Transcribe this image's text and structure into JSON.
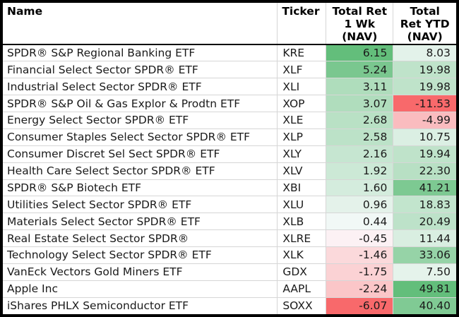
{
  "chart_data": {
    "type": "table",
    "columns": [
      {
        "key": "name",
        "label": "Name"
      },
      {
        "key": "ticker",
        "label": "Ticker"
      },
      {
        "key": "wk",
        "label": "Total Ret\n1 Wk\n(NAV)"
      },
      {
        "key": "ytd",
        "label": "Total\nRet YTD\n(NAV)"
      }
    ],
    "rows": [
      {
        "name": "SPDR® S&P Regional Banking ETF",
        "ticker": "KRE",
        "wk": 6.15,
        "ytd": 8.03
      },
      {
        "name": "Financial Select Sector SPDR® ETF",
        "ticker": "XLF",
        "wk": 5.24,
        "ytd": 19.98
      },
      {
        "name": "Industrial Select Sector SPDR® ETF",
        "ticker": "XLI",
        "wk": 3.11,
        "ytd": 19.98
      },
      {
        "name": "SPDR® S&P Oil & Gas Explor & Prodtn ETF",
        "ticker": "XOP",
        "wk": 3.07,
        "ytd": -11.53
      },
      {
        "name": "Energy Select Sector SPDR® ETF",
        "ticker": "XLE",
        "wk": 2.68,
        "ytd": -4.99
      },
      {
        "name": "Consumer Staples Select Sector SPDR® ETF",
        "ticker": "XLP",
        "wk": 2.58,
        "ytd": 10.75
      },
      {
        "name": "Consumer Discret Sel Sect SPDR® ETF",
        "ticker": "XLY",
        "wk": 2.16,
        "ytd": 19.94
      },
      {
        "name": "Health Care Select Sector SPDR® ETF",
        "ticker": "XLV",
        "wk": 1.92,
        "ytd": 22.3
      },
      {
        "name": "SPDR® S&P Biotech ETF",
        "ticker": "XBI",
        "wk": 1.6,
        "ytd": 41.21
      },
      {
        "name": "Utilities Select Sector SPDR® ETF",
        "ticker": "XLU",
        "wk": 0.96,
        "ytd": 18.83
      },
      {
        "name": "Materials Select Sector SPDR® ETF",
        "ticker": "XLB",
        "wk": 0.44,
        "ytd": 20.49
      },
      {
        "name": "Real Estate Select Sector SPDR®",
        "ticker": "XLRE",
        "wk": -0.45,
        "ytd": 11.44
      },
      {
        "name": "Technology Select Sector SPDR® ETF",
        "ticker": "XLK",
        "wk": -1.46,
        "ytd": 33.06
      },
      {
        "name": "VanEck Vectors Gold Miners ETF",
        "ticker": "GDX",
        "wk": -1.75,
        "ytd": 7.5
      },
      {
        "name": "Apple Inc",
        "ticker": "AAPL",
        "wk": -2.24,
        "ytd": 49.81
      },
      {
        "name": "iShares PHLX Semiconductor ETF",
        "ticker": "SOXX",
        "wk": -6.07,
        "ytd": 40.4
      }
    ],
    "conditional_format": {
      "shaded_columns": [
        "wk",
        "ytd"
      ],
      "midpoint": 0,
      "scale": {
        "negative_min": "#F8696B",
        "neutral": "#FCFCFF",
        "positive_max": "#63BE7B"
      }
    },
    "layout": {
      "decimals": 2,
      "value_align": "right",
      "grid": true
    }
  },
  "style": {
    "outer_border": "#000000",
    "gridline": "#D6D6D6",
    "header_bg": "#FFFFFF",
    "header_text": "#000000",
    "body_text": "#1A1A1A",
    "header_divider": "#000000"
  }
}
